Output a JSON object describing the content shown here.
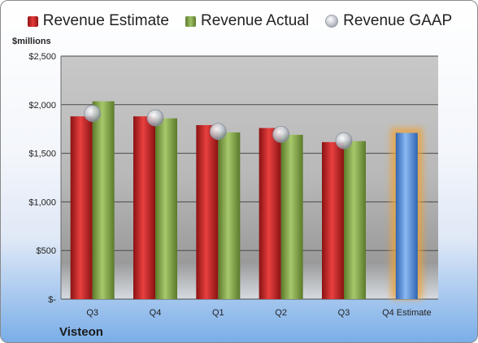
{
  "chart_data": {
    "type": "bar",
    "unit_label": "$millions",
    "company": "Visteon",
    "categories": [
      "Q3",
      "Q4",
      "Q1",
      "Q2",
      "Q3",
      "Q4 Estimate"
    ],
    "series": [
      {
        "name": "Revenue Estimate",
        "values": [
          1880,
          1880,
          1790,
          1760,
          1615,
          null
        ]
      },
      {
        "name": "Revenue Actual",
        "values": [
          2035,
          1860,
          1715,
          1690,
          1625,
          null
        ]
      },
      {
        "name": "Revenue GAAP",
        "values": [
          1910,
          1865,
          1725,
          1695,
          1630,
          null
        ]
      }
    ],
    "forecast": {
      "category": "Q4 Estimate",
      "value": 1710
    },
    "y_ticks": [
      {
        "value": 0,
        "label": "$-"
      },
      {
        "value": 500,
        "label": "$500"
      },
      {
        "value": 1000,
        "label": "$1,000"
      },
      {
        "value": 1500,
        "label": "$1,500"
      },
      {
        "value": 2000,
        "label": "$2,000"
      },
      {
        "value": 2500,
        "label": "$2,500"
      }
    ],
    "ylim": [
      0,
      2500
    ],
    "grid": true,
    "legend_position": "top",
    "colors": {
      "estimate": "#c92a2a",
      "actual": "#7f9f47",
      "gaap": "#b8bcc4",
      "forecast": "#5b8ed4",
      "forecast_glow": "#f0a030"
    }
  }
}
